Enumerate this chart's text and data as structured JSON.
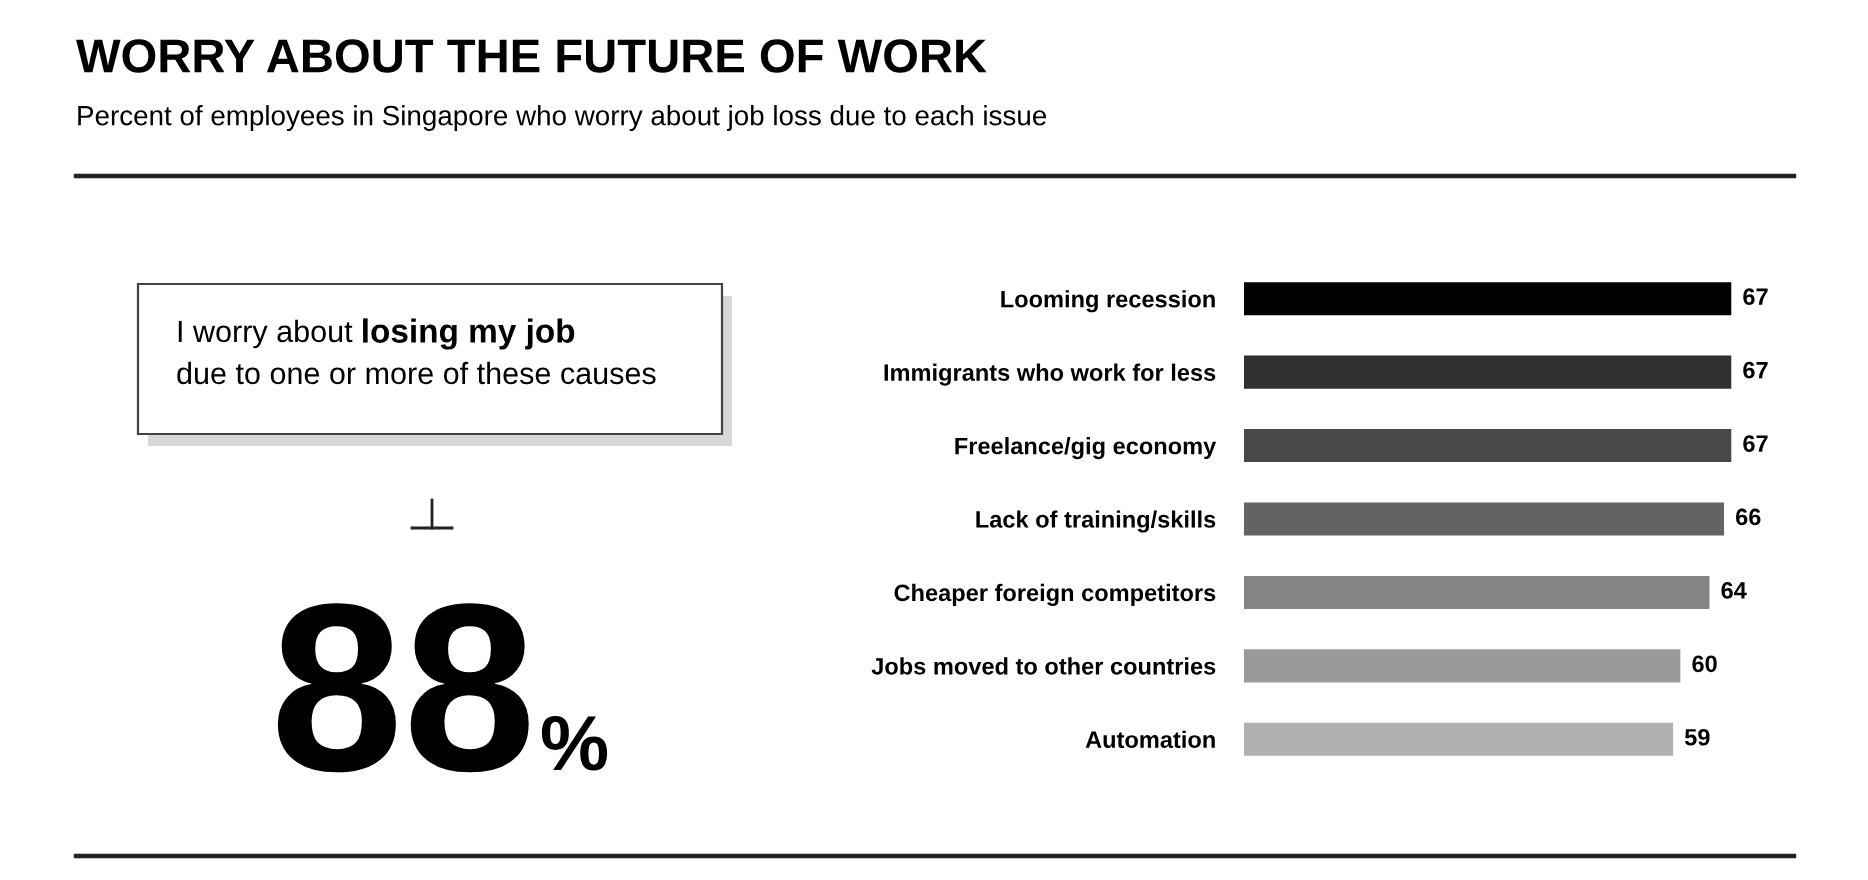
{
  "chart_data": [
    {
      "type": "other",
      "title": "WORRY ABOUT THE FUTURE OF WORK",
      "subtitle": "Percent of employees in Singapore who worry about job loss due to each issue",
      "annotations": [
        "I worry about ",
        "losing my job",
        "due to one or more of these causes",
        "88",
        "%"
      ]
    },
    {
      "type": "bar",
      "orientation": "horizontal",
      "data_labels": true,
      "grid": false,
      "categories": [
        "Looming recession",
        "Immigrants who work for less",
        "Freelance/gig economy",
        "Lack of training/skills",
        "Cheaper foreign competitors",
        "Jobs moved to other countries",
        "Automation"
      ],
      "values": [
        67,
        67,
        67,
        66,
        64,
        60,
        59
      ],
      "colors": [
        "#000000",
        "#303030",
        "#484848",
        "#636363",
        "#848484",
        "#9a9a9a",
        "#b0b0b0"
      ]
    }
  ]
}
